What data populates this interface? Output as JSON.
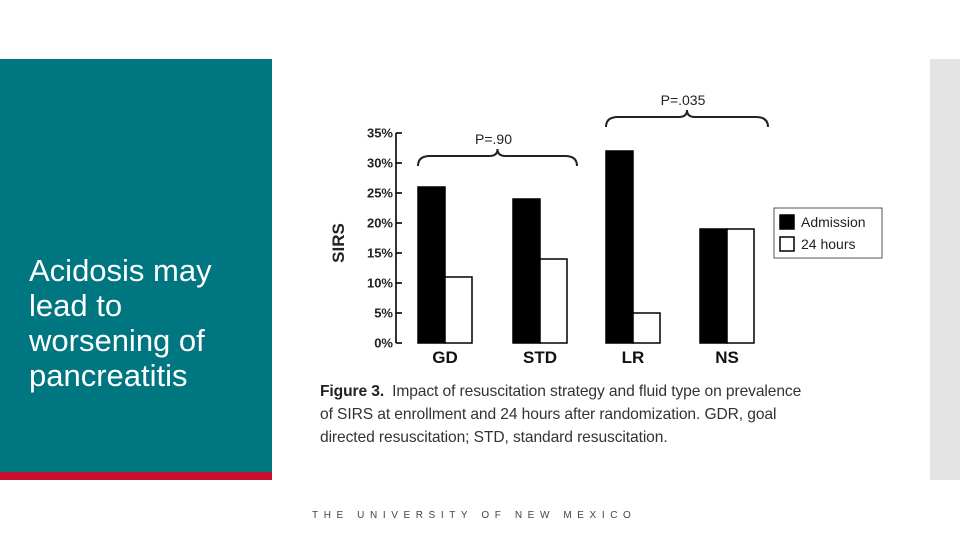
{
  "slide": {
    "title": "Acidosis may lead to worsening of pancreatitis",
    "footer": "THE UNIVERSITY OF NEW MEXICO",
    "colors": {
      "panel": "#007681",
      "accent": "#c8102e",
      "strip": "#e4e4e4"
    }
  },
  "figure": {
    "caption_label": "Figure 3.",
    "caption_lines": [
      "Impact of resuscitation strategy and fluid type on prevalence",
      "of SIRS at enrollment and 24 hours after randomization. GDR, goal",
      "directed resuscitation; STD, standard resuscitation."
    ]
  },
  "chart_data": {
    "type": "bar",
    "title": "",
    "xlabel": "",
    "ylabel": "SIRS",
    "ylim": [
      0,
      35
    ],
    "yticks": [
      0,
      5,
      10,
      15,
      20,
      25,
      30,
      35
    ],
    "ytick_labels": [
      "0%",
      "5%",
      "10%",
      "15%",
      "20%",
      "25%",
      "30%",
      "35%"
    ],
    "categories": [
      "GD",
      "STD",
      "LR",
      "NS"
    ],
    "series": [
      {
        "name": "Admission",
        "values": [
          26,
          24,
          32,
          19
        ],
        "color": "#000000"
      },
      {
        "name": "24 hours",
        "values": [
          11,
          14,
          5,
          19
        ],
        "color": "#ffffff"
      }
    ],
    "legend_position": "right",
    "grid": false,
    "annotations": [
      {
        "text": "P=.90",
        "spans": [
          "GD",
          "STD"
        ]
      },
      {
        "text": "P=.035",
        "spans": [
          "LR",
          "NS"
        ]
      }
    ]
  }
}
